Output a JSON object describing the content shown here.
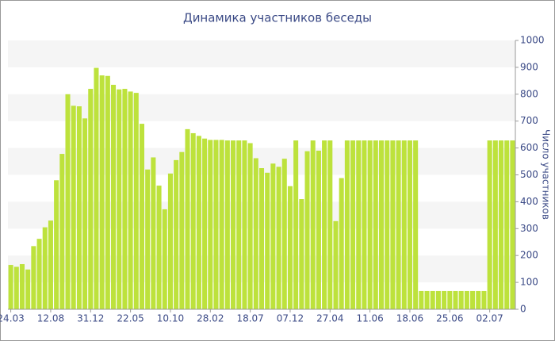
{
  "chart_data": {
    "type": "bar",
    "title": "Динамика участников беседы",
    "y_label": "Число участников",
    "categories": [
      "24.03",
      null,
      null,
      null,
      null,
      null,
      null,
      "12.08",
      null,
      null,
      null,
      null,
      null,
      null,
      "31.12",
      null,
      null,
      null,
      null,
      null,
      null,
      "22.05",
      null,
      null,
      null,
      null,
      null,
      null,
      "10.10",
      null,
      null,
      null,
      null,
      null,
      null,
      "28.02",
      null,
      null,
      null,
      null,
      null,
      null,
      "18.07",
      null,
      null,
      null,
      null,
      null,
      null,
      "07.12",
      null,
      null,
      null,
      null,
      null,
      null,
      "27.04",
      null,
      null,
      null,
      null,
      null,
      null,
      "11.06",
      null,
      null,
      null,
      null,
      null,
      null,
      "18.06",
      null,
      null,
      null,
      null,
      null,
      null,
      "25.06",
      null,
      null,
      null,
      null,
      null,
      null,
      "02.07",
      null,
      null,
      null,
      null
    ],
    "values": [
      165,
      158,
      168,
      148,
      235,
      262,
      305,
      330,
      480,
      578,
      800,
      757,
      755,
      710,
      820,
      898,
      870,
      868,
      835,
      818,
      820,
      810,
      805,
      690,
      520,
      565,
      460,
      372,
      505,
      555,
      585,
      670,
      655,
      645,
      635,
      630,
      630,
      630,
      628,
      628,
      628,
      628,
      618,
      562,
      525,
      508,
      542,
      530,
      560,
      458,
      628,
      410,
      588,
      628,
      590,
      628,
      628,
      328,
      488,
      628,
      628,
      628,
      628,
      628,
      628,
      628,
      628,
      628,
      628,
      628,
      628,
      628,
      68,
      68,
      68,
      68,
      68,
      68,
      68,
      68,
      68,
      68,
      68,
      68,
      628,
      628,
      628,
      628,
      628
    ],
    "color": "#bde23c",
    "ylim": [
      0,
      1000
    ],
    "yticks": [
      0,
      100,
      200,
      300,
      400,
      500,
      600,
      700,
      800,
      900,
      1000
    ],
    "grid": true
  }
}
